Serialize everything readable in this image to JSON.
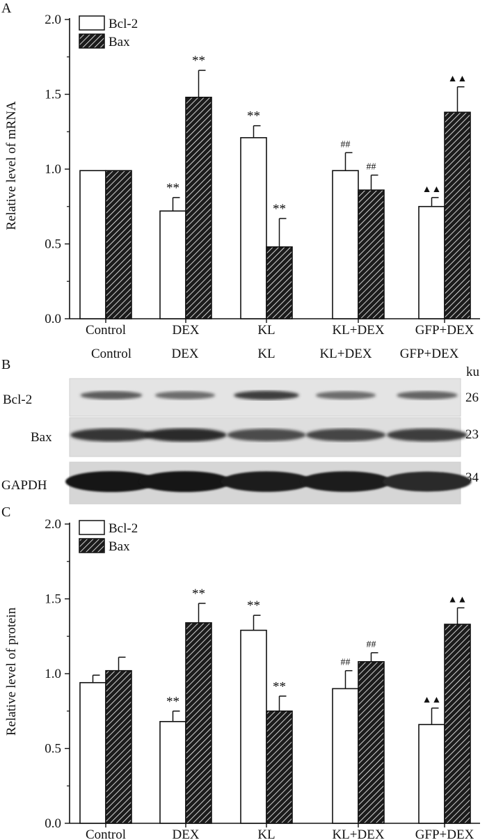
{
  "panels": {
    "A": {
      "letter": "A",
      "ylabel": "Relative level of mRNA",
      "legend": [
        "Bcl-2",
        "Bax"
      ],
      "yticks": [
        "0.0",
        "0.5",
        "1.0",
        "1.5",
        "2.0"
      ],
      "categories": [
        "Control",
        "DEX",
        "KL",
        "KL+DEX",
        "GFP+DEX"
      ]
    },
    "B": {
      "letter": "B",
      "lanes": [
        "Control",
        "DEX",
        "KL",
        "KL+DEX",
        "GFP+DEX"
      ],
      "unit": "ku",
      "rows": [
        {
          "label": "Bcl-2",
          "size": "26"
        },
        {
          "label": "Bax",
          "size": "23"
        },
        {
          "label": "GAPDH",
          "size": "34"
        }
      ]
    },
    "C": {
      "letter": "C",
      "ylabel": "Relative level of protein",
      "legend": [
        "Bcl-2",
        "Bax"
      ],
      "yticks": [
        "0.0",
        "0.5",
        "1.0",
        "1.5",
        "2.0"
      ],
      "categories": [
        "Control",
        "DEX",
        "KL",
        "KL+DEX",
        "GFP+DEX"
      ]
    }
  },
  "chart_data": [
    {
      "type": "bar",
      "categories": [
        "Control",
        "DEX",
        "KL",
        "KL+DEX",
        "GFP+DEX"
      ],
      "ylabel": "Relative level of mRNA",
      "ylim": [
        0,
        2.0
      ],
      "legend_position": "top-left",
      "series": [
        {
          "name": "Bcl-2",
          "values": [
            0.99,
            0.72,
            1.21,
            0.99,
            0.75
          ],
          "errors": [
            0.0,
            0.09,
            0.08,
            0.12,
            0.06
          ],
          "marks": [
            "",
            "**",
            "**",
            "##",
            "▲▲"
          ]
        },
        {
          "name": "Bax",
          "values": [
            0.99,
            1.48,
            0.48,
            0.86,
            1.38
          ],
          "errors": [
            0.0,
            0.18,
            0.19,
            0.1,
            0.17
          ],
          "marks": [
            "",
            "**",
            "**",
            "##",
            "▲▲"
          ]
        }
      ]
    },
    {
      "type": "bar",
      "categories": [
        "Control",
        "DEX",
        "KL",
        "KL+DEX",
        "GFP+DEX"
      ],
      "ylabel": "Relative level of protein",
      "ylim": [
        0,
        2.0
      ],
      "legend_position": "top-left",
      "series": [
        {
          "name": "Bcl-2",
          "values": [
            0.94,
            0.68,
            1.29,
            0.9,
            0.66
          ],
          "errors": [
            0.05,
            0.07,
            0.1,
            0.12,
            0.11
          ],
          "marks": [
            "",
            "**",
            "**",
            "##",
            "▲▲"
          ]
        },
        {
          "name": "Bax",
          "values": [
            1.02,
            1.34,
            0.75,
            1.08,
            1.33
          ],
          "errors": [
            0.09,
            0.13,
            0.1,
            0.06,
            0.11
          ],
          "marks": [
            "",
            "**",
            "**",
            "##",
            "▲▲"
          ]
        }
      ]
    }
  ],
  "blot_intensity": {
    "Bcl-2": [
      0.55,
      0.45,
      0.75,
      0.45,
      0.5
    ],
    "Bax": [
      0.8,
      0.85,
      0.65,
      0.7,
      0.75
    ],
    "GAPDH": [
      1.0,
      1.0,
      0.95,
      0.95,
      0.85
    ]
  }
}
